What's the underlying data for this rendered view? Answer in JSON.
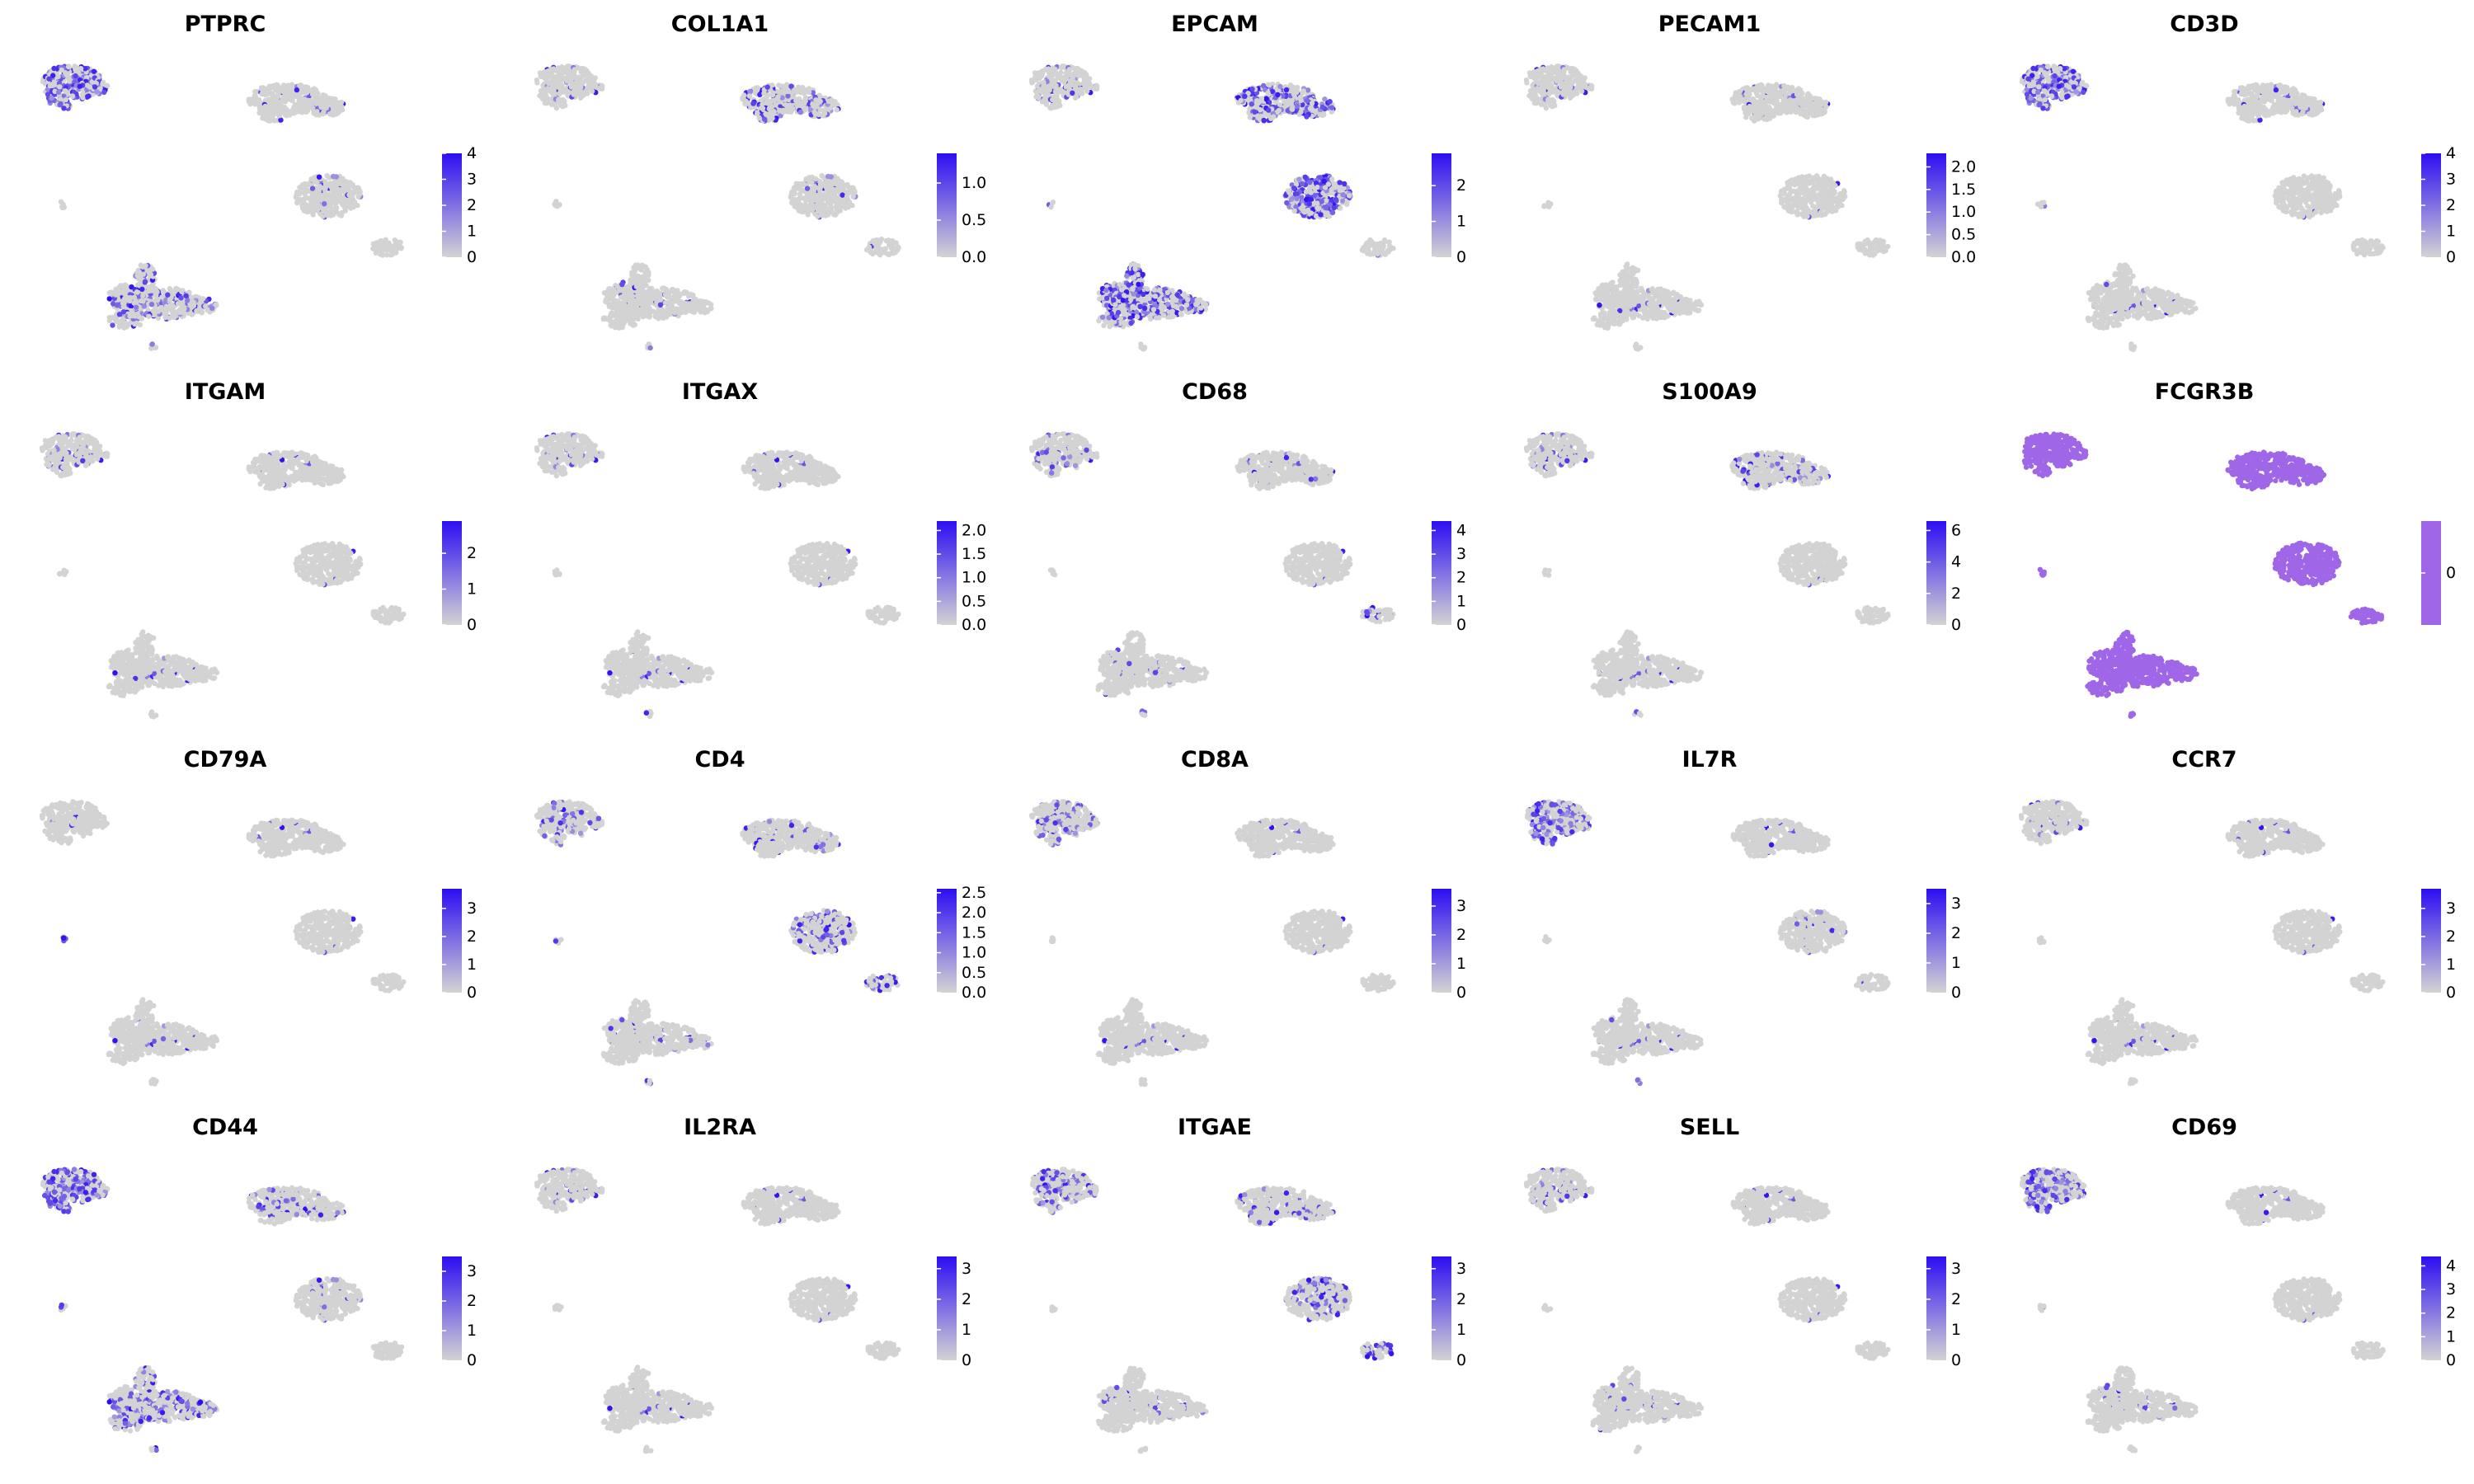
{
  "chart_data": {
    "type": "scatter",
    "title": "",
    "xlabel": "",
    "ylabel": "",
    "low_color": "#D3D3D3",
    "high_color": "#2D0EF2",
    "grid": false,
    "legend_placement": "right of each panel",
    "panels": [
      {
        "gene": "PTPRC",
        "max": 4,
        "ticks": [
          "0",
          "1",
          "2",
          "3",
          "4"
        ],
        "expression": {
          "A": 0.55,
          "B": 0.05,
          "C": 0.05,
          "D": 0.02,
          "E": 0.25,
          "F": 0.02,
          "G": 0.35
        }
      },
      {
        "gene": "COL1A1",
        "max": 1.4,
        "ticks": [
          "0.0",
          "0.5",
          "1.0"
        ],
        "expression": {
          "A": 0.05,
          "B": 0.25,
          "C": 0.05,
          "D": 0.02,
          "E": 0.05,
          "F": 0.02,
          "G": 0.05
        }
      },
      {
        "gene": "EPCAM",
        "max": 2.9,
        "ticks": [
          "0",
          "1",
          "2"
        ],
        "expression": {
          "A": 0.08,
          "B": 0.55,
          "C": 0.55,
          "D": 0.02,
          "E": 0.45,
          "F": 0.02,
          "G": 0.05
        }
      },
      {
        "gene": "PECAM1",
        "max": 2.3,
        "ticks": [
          "0.0",
          "0.5",
          "1.0",
          "1.5",
          "2.0"
        ],
        "expression": {
          "A": 0.05,
          "B": 0.05,
          "C": 0.02,
          "D": 0.02,
          "E": 0.02,
          "F": 0.02,
          "G": 0.35
        }
      },
      {
        "gene": "CD3D",
        "max": 4,
        "ticks": [
          "0",
          "1",
          "2",
          "3",
          "4"
        ],
        "expression": {
          "A": 0.55,
          "B": 0.05,
          "C": 0.02,
          "D": 0.02,
          "E": 0.02,
          "F": 0.02,
          "G": 0.08
        }
      },
      {
        "gene": "ITGAM",
        "max": 2.9,
        "ticks": [
          "0",
          "1",
          "2"
        ],
        "expression": {
          "A": 0.08,
          "B": 0.02,
          "C": 0.02,
          "D": 0.02,
          "E": 0.02,
          "F": 0.02,
          "G": 0.25
        }
      },
      {
        "gene": "ITGAX",
        "max": 2.2,
        "ticks": [
          "0.0",
          "0.5",
          "1.0",
          "1.5",
          "2.0"
        ],
        "expression": {
          "A": 0.05,
          "B": 0.02,
          "C": 0.02,
          "D": 0.02,
          "E": 0.02,
          "F": 0.02,
          "G": 0.2
        }
      },
      {
        "gene": "CD68",
        "max": 4.4,
        "ticks": [
          "0",
          "1",
          "2",
          "3",
          "4"
        ],
        "expression": {
          "A": 0.12,
          "B": 0.05,
          "C": 0.02,
          "D": 0.25,
          "E": 0.05,
          "F": 0.02,
          "G": 0.55
        }
      },
      {
        "gene": "S100A9",
        "max": 6.6,
        "ticks": [
          "0",
          "2",
          "4",
          "6"
        ],
        "expression": {
          "A": 0.08,
          "B": 0.2,
          "C": 0.02,
          "D": 0.02,
          "E": 0.02,
          "F": 0.02,
          "G": 0.4
        }
      },
      {
        "gene": "FCGR3B",
        "max": 0,
        "ticks": [
          "0"
        ],
        "constant": true,
        "expression": {
          "A": 1,
          "B": 1,
          "C": 1,
          "D": 1,
          "E": 1,
          "F": 1,
          "G": 1
        }
      },
      {
        "gene": "CD79A",
        "max": 3.7,
        "ticks": [
          "0",
          "1",
          "2",
          "3"
        ],
        "expression": {
          "A": 0.02,
          "B": 0.02,
          "C": 0.02,
          "D": 0.02,
          "E": 0.02,
          "F": 0.9,
          "G": 0.02
        }
      },
      {
        "gene": "CD4",
        "max": 2.6,
        "ticks": [
          "0.0",
          "0.5",
          "1.0",
          "1.5",
          "2.0",
          "2.5"
        ],
        "expression": {
          "A": 0.15,
          "B": 0.1,
          "C": 0.3,
          "D": 0.25,
          "E": 0.05,
          "F": 0.1,
          "G": 0.35
        }
      },
      {
        "gene": "CD8A",
        "max": 3.6,
        "ticks": [
          "0",
          "1",
          "2",
          "3"
        ],
        "expression": {
          "A": 0.25,
          "B": 0.02,
          "C": 0.02,
          "D": 0.02,
          "E": 0.02,
          "F": 0.02,
          "G": 0.02
        }
      },
      {
        "gene": "IL7R",
        "max": 3.5,
        "ticks": [
          "0",
          "1",
          "2",
          "3"
        ],
        "expression": {
          "A": 0.45,
          "B": 0.02,
          "C": 0.05,
          "D": 0.02,
          "E": 0.02,
          "F": 0.02,
          "G": 0.3
        }
      },
      {
        "gene": "CCR7",
        "max": 3.7,
        "ticks": [
          "0",
          "1",
          "2",
          "3"
        ],
        "expression": {
          "A": 0.05,
          "B": 0.02,
          "C": 0.02,
          "D": 0.02,
          "E": 0.02,
          "F": 0.02,
          "G": 0.02
        }
      },
      {
        "gene": "CD44",
        "max": 3.5,
        "ticks": [
          "0",
          "1",
          "2",
          "3"
        ],
        "expression": {
          "A": 0.6,
          "B": 0.2,
          "C": 0.05,
          "D": 0.02,
          "E": 0.3,
          "F": 0.25,
          "G": 0.6
        }
      },
      {
        "gene": "IL2RA",
        "max": 3.4,
        "ticks": [
          "0",
          "1",
          "2",
          "3"
        ],
        "expression": {
          "A": 0.06,
          "B": 0.02,
          "C": 0.02,
          "D": 0.02,
          "E": 0.02,
          "F": 0.02,
          "G": 0.02
        }
      },
      {
        "gene": "ITGAE",
        "max": 3.4,
        "ticks": [
          "0",
          "1",
          "2",
          "3"
        ],
        "expression": {
          "A": 0.35,
          "B": 0.15,
          "C": 0.2,
          "D": 0.3,
          "E": 0.05,
          "F": 0.05,
          "G": 0.15
        }
      },
      {
        "gene": "SELL",
        "max": 3.4,
        "ticks": [
          "0",
          "1",
          "2",
          "3"
        ],
        "expression": {
          "A": 0.08,
          "B": 0.02,
          "C": 0.02,
          "D": 0.02,
          "E": 0.05,
          "F": 0.02,
          "G": 0.02
        }
      },
      {
        "gene": "CD69",
        "max": 4.4,
        "ticks": [
          "0",
          "1",
          "2",
          "3",
          "4"
        ],
        "expression": {
          "A": 0.45,
          "B": 0.02,
          "C": 0.02,
          "D": 0.02,
          "E": 0.05,
          "F": 0.02,
          "G": 0.05
        }
      }
    ]
  }
}
